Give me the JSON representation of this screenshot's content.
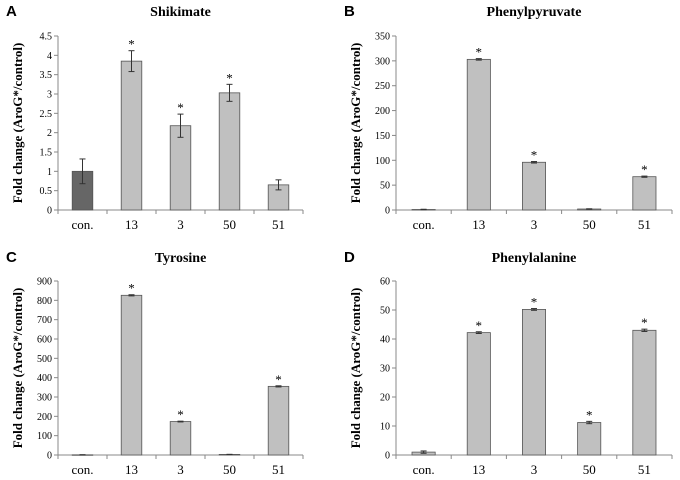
{
  "chart_data": [
    {
      "panel": "A",
      "type": "bar",
      "title": "Shikimate",
      "ylabel": "Fold change (AroG*/control)",
      "categories": [
        "con.",
        "13",
        "3",
        "50",
        "51"
      ],
      "values": [
        1.0,
        3.85,
        2.18,
        3.03,
        0.65
      ],
      "errors": [
        0.32,
        0.27,
        0.3,
        0.22,
        0.13
      ],
      "significant": [
        false,
        true,
        true,
        true,
        false
      ],
      "ylim": [
        0,
        4.5
      ],
      "yticks": [
        "0",
        "0.5",
        "1",
        "1.5",
        "2",
        "2.5",
        "3",
        "3.5",
        "4",
        "4.5"
      ],
      "colors": [
        "#666666",
        "#c0c0c0",
        "#c0c0c0",
        "#c0c0c0",
        "#c0c0c0"
      ]
    },
    {
      "panel": "B",
      "type": "bar",
      "title": "Phenylpyruvate",
      "ylabel": "Fold change (AroG*/control)",
      "categories": [
        "con.",
        "13",
        "3",
        "50",
        "51"
      ],
      "values": [
        1,
        303,
        96,
        2,
        67
      ],
      "errors": [
        0.5,
        1.5,
        1.5,
        0.5,
        1.2
      ],
      "significant": [
        false,
        true,
        true,
        false,
        true
      ],
      "ylim": [
        0,
        350
      ],
      "yticks": [
        "0",
        "50",
        "100",
        "150",
        "200",
        "250",
        "300",
        "350"
      ],
      "colors": [
        "#c0c0c0",
        "#c0c0c0",
        "#c0c0c0",
        "#c0c0c0",
        "#c0c0c0"
      ]
    },
    {
      "panel": "C",
      "type": "bar",
      "title": "Tyrosine",
      "ylabel": "Fold change (AroG*/control)",
      "categories": [
        "con.",
        "13",
        "3",
        "50",
        "51"
      ],
      "values": [
        1,
        826,
        173,
        3,
        355
      ],
      "errors": [
        0.5,
        3,
        2,
        0.5,
        3
      ],
      "significant": [
        false,
        true,
        true,
        false,
        true
      ],
      "ylim": [
        0,
        900
      ],
      "yticks": [
        "0",
        "100",
        "200",
        "300",
        "400",
        "500",
        "600",
        "700",
        "800",
        "900"
      ],
      "colors": [
        "#c0c0c0",
        "#c0c0c0",
        "#c0c0c0",
        "#c0c0c0",
        "#c0c0c0"
      ]
    },
    {
      "panel": "D",
      "type": "bar",
      "title": "Phenylalanine",
      "ylabel": "Fold change (AroG*/control)",
      "categories": [
        "con.",
        "13",
        "3",
        "50",
        "51"
      ],
      "values": [
        1,
        42.2,
        50.2,
        11.2,
        43.0
      ],
      "errors": [
        0.4,
        0.3,
        0.3,
        0.4,
        0.4
      ],
      "significant": [
        false,
        true,
        true,
        true,
        true
      ],
      "ylim": [
        0,
        60
      ],
      "yticks": [
        "0",
        "10",
        "20",
        "30",
        "40",
        "50",
        "60"
      ],
      "colors": [
        "#c0c0c0",
        "#c0c0c0",
        "#c0c0c0",
        "#c0c0c0",
        "#c0c0c0"
      ]
    }
  ]
}
